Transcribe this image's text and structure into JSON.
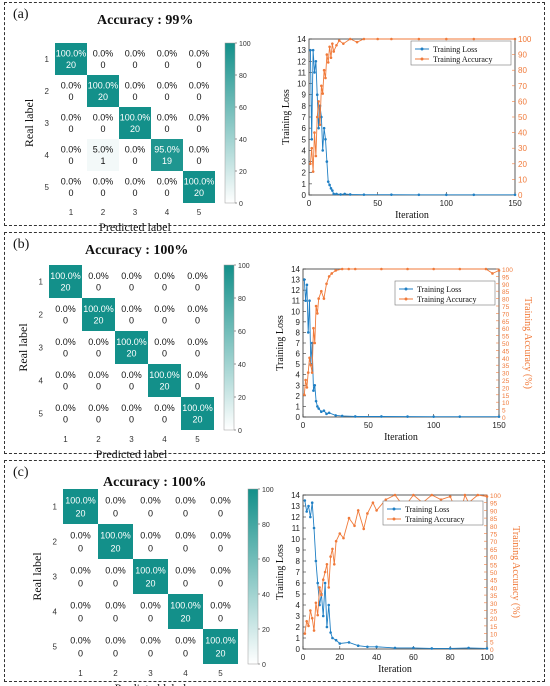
{
  "panels": [
    {
      "label": "(a)",
      "accuracy_title": "Accuracy : 99%",
      "confusion": {
        "xlabel": "Predicted label",
        "ylabel": "Real label",
        "ticks": [
          "1",
          "2",
          "3",
          "4",
          "5"
        ],
        "colorbar_ticks": [
          "100",
          "80",
          "60",
          "40",
          "20",
          "0"
        ],
        "pct": [
          [
            "100.0%",
            "0.0%",
            "0.0%",
            "0.0%",
            "0.0%"
          ],
          [
            "0.0%",
            "100.0%",
            "0.0%",
            "0.0%",
            "0.0%"
          ],
          [
            "0.0%",
            "0.0%",
            "100.0%",
            "0.0%",
            "0.0%"
          ],
          [
            "0.0%",
            "5.0%",
            "0.0%",
            "95.0%",
            "0.0%"
          ],
          [
            "0.0%",
            "0.0%",
            "0.0%",
            "0.0%",
            "100.0%"
          ]
        ],
        "count": [
          [
            "20",
            "0",
            "0",
            "0",
            "0"
          ],
          [
            "0",
            "20",
            "0",
            "0",
            "0"
          ],
          [
            "0",
            "0",
            "20",
            "0",
            "0"
          ],
          [
            "0",
            "1",
            "0",
            "19",
            "0"
          ],
          [
            "0",
            "0",
            "0",
            "0",
            "20"
          ]
        ],
        "values": [
          [
            100,
            0,
            0,
            0,
            0
          ],
          [
            0,
            100,
            0,
            0,
            0
          ],
          [
            0,
            0,
            100,
            0,
            0
          ],
          [
            0,
            5,
            0,
            95,
            0
          ],
          [
            0,
            0,
            0,
            0,
            100
          ]
        ]
      }
    },
    {
      "label": "(b)",
      "accuracy_title": "Accuracy : 100%",
      "confusion": {
        "xlabel": "Predicted label",
        "ylabel": "Real label",
        "ticks": [
          "1",
          "2",
          "3",
          "4",
          "5"
        ],
        "colorbar_ticks": [
          "100",
          "80",
          "60",
          "40",
          "20",
          "0"
        ],
        "pct": [
          [
            "100.0%",
            "0.0%",
            "0.0%",
            "0.0%",
            "0.0%"
          ],
          [
            "0.0%",
            "100.0%",
            "0.0%",
            "0.0%",
            "0.0%"
          ],
          [
            "0.0%",
            "0.0%",
            "100.0%",
            "0.0%",
            "0.0%"
          ],
          [
            "0.0%",
            "0.0%",
            "0.0%",
            "100.0%",
            "0.0%"
          ],
          [
            "0.0%",
            "0.0%",
            "0.0%",
            "0.0%",
            "100.0%"
          ]
        ],
        "count": [
          [
            "20",
            "0",
            "0",
            "0",
            "0"
          ],
          [
            "0",
            "20",
            "0",
            "0",
            "0"
          ],
          [
            "0",
            "0",
            "20",
            "0",
            "0"
          ],
          [
            "0",
            "0",
            "0",
            "20",
            "0"
          ],
          [
            "0",
            "0",
            "0",
            "0",
            "20"
          ]
        ],
        "values": [
          [
            100,
            0,
            0,
            0,
            0
          ],
          [
            0,
            100,
            0,
            0,
            0
          ],
          [
            0,
            0,
            100,
            0,
            0
          ],
          [
            0,
            0,
            0,
            100,
            0
          ],
          [
            0,
            0,
            0,
            0,
            100
          ]
        ]
      }
    },
    {
      "label": "(c)",
      "accuracy_title": "Accuracy : 100%",
      "confusion": {
        "xlabel": "Predicted label",
        "ylabel": "Real label",
        "ticks": [
          "1",
          "2",
          "3",
          "4",
          "5"
        ],
        "colorbar_ticks": [
          "100",
          "80",
          "60",
          "40",
          "20",
          "0"
        ],
        "pct": [
          [
            "100.0%",
            "0.0%",
            "0.0%",
            "0.0%",
            "0.0%"
          ],
          [
            "0.0%",
            "100.0%",
            "0.0%",
            "0.0%",
            "0.0%"
          ],
          [
            "0.0%",
            "0.0%",
            "100.0%",
            "0.0%",
            "0.0%"
          ],
          [
            "0.0%",
            "0.0%",
            "0.0%",
            "100.0%",
            "0.0%"
          ],
          [
            "0.0%",
            "0.0%",
            "0.0%",
            "0.0%",
            "100.0%"
          ]
        ],
        "count": [
          [
            "20",
            "0",
            "0",
            "0",
            "0"
          ],
          [
            "0",
            "20",
            "0",
            "0",
            "0"
          ],
          [
            "0",
            "0",
            "20",
            "0",
            "0"
          ],
          [
            "0",
            "0",
            "0",
            "20",
            "0"
          ],
          [
            "0",
            "0",
            "0",
            "0",
            "20"
          ]
        ],
        "values": [
          [
            100,
            0,
            0,
            0,
            0
          ],
          [
            0,
            100,
            0,
            0,
            0
          ],
          [
            0,
            0,
            100,
            0,
            0
          ],
          [
            0,
            0,
            0,
            100,
            0
          ],
          [
            0,
            0,
            0,
            0,
            100
          ]
        ]
      }
    }
  ],
  "colors": {
    "cm_high": "#13908a",
    "cm_low": "#ffffff",
    "loss": "#1f7fc4",
    "accuracy": "#f07a3a"
  },
  "chart_data": [
    {
      "type": "line",
      "panel": "(a)",
      "xlabel": "Iteration",
      "ylabel": "Training Loss",
      "y2label": "",
      "xlim": [
        0,
        150
      ],
      "ylim": [
        0,
        14
      ],
      "y2lim": [
        0,
        100
      ],
      "xticks": [
        "0",
        "50",
        "100",
        "150"
      ],
      "yticks": [
        "0",
        "1",
        "2",
        "3",
        "4",
        "5",
        "6",
        "7",
        "8",
        "9",
        "10",
        "11",
        "12",
        "13",
        "14"
      ],
      "y2ticks": [
        "0",
        "10",
        "20",
        "30",
        "40",
        "50",
        "60",
        "70",
        "80",
        "90",
        "100"
      ],
      "legend_placement": "top-right",
      "series": [
        {
          "name": "Training Loss",
          "axis": "left",
          "x": [
            1,
            2,
            3,
            4,
            5,
            6,
            7,
            8,
            9,
            10,
            11,
            12,
            13,
            14,
            15,
            16,
            17,
            18,
            20,
            23,
            26,
            30,
            40,
            60,
            80,
            100,
            120,
            150
          ],
          "y": [
            13,
            5,
            13,
            11,
            12,
            9,
            6,
            8,
            7,
            4,
            6,
            5,
            3,
            1.2,
            0.9,
            0.6,
            0.4,
            0.1,
            0.1,
            0.05,
            0.1,
            0.05,
            0.03,
            0.03,
            0.02,
            0.02,
            0.02,
            0.02
          ]
        },
        {
          "name": "Training Accuracy",
          "axis": "right",
          "x": [
            1,
            2,
            3,
            4,
            5,
            6,
            7,
            8,
            9,
            10,
            11,
            12,
            13,
            14,
            15,
            16,
            17,
            18,
            20,
            22,
            25,
            30,
            35,
            40,
            50,
            60,
            80,
            100,
            120,
            150
          ],
          "y": [
            20,
            30,
            15,
            40,
            25,
            50,
            60,
            45,
            70,
            65,
            80,
            75,
            90,
            85,
            95,
            88,
            97,
            92,
            96,
            99,
            97,
            100,
            98,
            100,
            100,
            100,
            100,
            100,
            100,
            100
          ]
        }
      ]
    },
    {
      "type": "line",
      "panel": "(b)",
      "xlabel": "Iteration",
      "ylabel": "Training Loss",
      "y2label": "Training Accuracy (%)",
      "xlim": [
        0,
        150
      ],
      "ylim": [
        0,
        14
      ],
      "y2lim": [
        0,
        100
      ],
      "xticks": [
        "0",
        "50",
        "100",
        "150"
      ],
      "yticks": [
        "0",
        "1",
        "2",
        "3",
        "4",
        "5",
        "6",
        "7",
        "8",
        "9",
        "10",
        "11",
        "12",
        "13",
        "14"
      ],
      "y2ticks": [
        "0",
        "5",
        "10",
        "15",
        "20",
        "25",
        "30",
        "35",
        "40",
        "45",
        "50",
        "55",
        "60",
        "65",
        "70",
        "75",
        "80",
        "85",
        "90",
        "95",
        "100"
      ],
      "legend_placement": "top-right",
      "series": [
        {
          "name": "Training Loss",
          "axis": "left",
          "x": [
            1,
            2,
            3,
            4,
            5,
            6,
            7,
            8,
            9,
            10,
            11,
            12,
            14,
            16,
            18,
            20,
            25,
            30,
            40,
            60,
            80,
            100,
            120,
            150
          ],
          "y": [
            13,
            11,
            12.5,
            8,
            11,
            5,
            7,
            2.5,
            3,
            1.5,
            1,
            0.8,
            0.5,
            0.6,
            0.3,
            0.4,
            0.15,
            0.1,
            0.05,
            0.05,
            0.04,
            0.03,
            0.03,
            0.03
          ]
        },
        {
          "name": "Training Accuracy",
          "axis": "right",
          "x": [
            1,
            2,
            3,
            4,
            5,
            6,
            7,
            8,
            9,
            10,
            11,
            12,
            14,
            16,
            18,
            20,
            22,
            25,
            30,
            35,
            40,
            60,
            80,
            100,
            120,
            140,
            145,
            150
          ],
          "y": [
            15,
            25,
            20,
            30,
            40,
            35,
            30,
            60,
            50,
            75,
            70,
            80,
            85,
            80,
            90,
            95,
            97,
            99,
            100,
            100,
            100,
            100,
            100,
            100,
            100,
            100,
            97,
            99
          ]
        }
      ]
    },
    {
      "type": "line",
      "panel": "(c)",
      "xlabel": "Iteration",
      "ylabel": "Training Loss",
      "y2label": "Training Accuracy (%)",
      "xlim": [
        0,
        100
      ],
      "ylim": [
        0,
        14
      ],
      "y2lim": [
        0,
        100
      ],
      "xticks": [
        "0",
        "20",
        "40",
        "60",
        "80",
        "100"
      ],
      "yticks": [
        "0",
        "1",
        "2",
        "3",
        "4",
        "5",
        "6",
        "7",
        "8",
        "9",
        "10",
        "11",
        "12",
        "13",
        "14"
      ],
      "y2ticks": [
        "0",
        "5",
        "10",
        "15",
        "20",
        "25",
        "30",
        "35",
        "40",
        "45",
        "50",
        "55",
        "60",
        "65",
        "70",
        "75",
        "80",
        "85",
        "90",
        "95",
        "100"
      ],
      "legend_placement": "top-right",
      "series": [
        {
          "name": "Training Loss",
          "axis": "left",
          "x": [
            1,
            2,
            3,
            4,
            5,
            6,
            7,
            8,
            9,
            10,
            11,
            12,
            13,
            14,
            15,
            16,
            18,
            20,
            25,
            30,
            35,
            40,
            50,
            60,
            70,
            80,
            90,
            100
          ],
          "y": [
            13.5,
            12.5,
            13,
            12,
            13.3,
            11,
            8,
            6,
            4,
            5,
            3,
            6,
            2,
            4,
            1.5,
            1,
            0.8,
            0.5,
            0.6,
            0.3,
            0.2,
            0.2,
            0.1,
            0.1,
            0.05,
            0.05,
            0.1,
            0.05
          ]
        },
        {
          "name": "Training Accuracy",
          "axis": "right",
          "x": [
            1,
            2,
            3,
            4,
            5,
            6,
            7,
            8,
            9,
            10,
            11,
            12,
            13,
            14,
            15,
            16,
            17,
            18,
            20,
            22,
            25,
            28,
            30,
            33,
            35,
            38,
            40,
            45,
            50,
            55,
            60,
            65,
            70,
            75,
            80,
            85,
            88,
            90,
            95,
            100
          ],
          "y": [
            10,
            18,
            15,
            25,
            20,
            12,
            30,
            22,
            40,
            35,
            45,
            50,
            55,
            40,
            60,
            65,
            55,
            70,
            75,
            72,
            85,
            80,
            90,
            78,
            88,
            95,
            90,
            97,
            100,
            92,
            100,
            95,
            100,
            97,
            99,
            85,
            100,
            95,
            100,
            99
          ]
        }
      ]
    }
  ]
}
